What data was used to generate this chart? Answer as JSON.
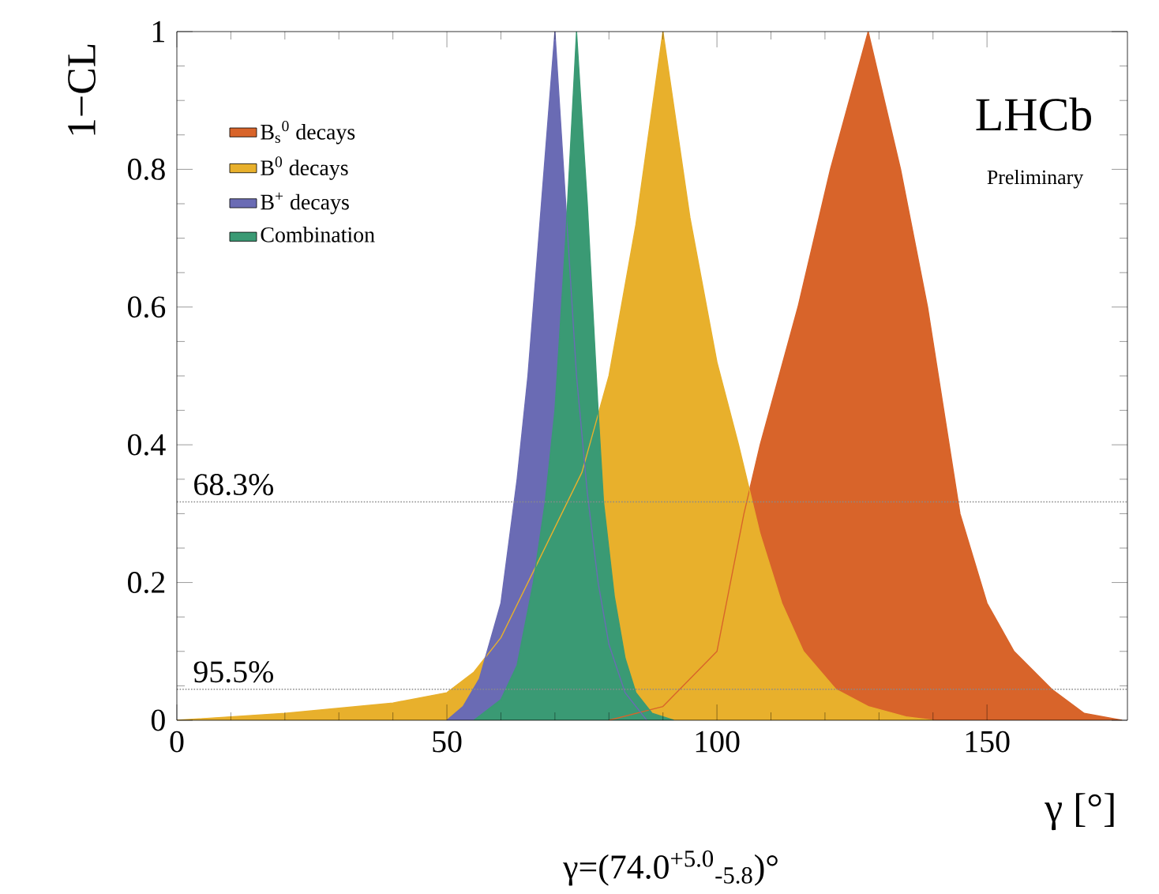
{
  "chart_data": {
    "type": "area",
    "xlabel": "γ [°]",
    "ylabel": "1−CL",
    "xlim": [
      0,
      176
    ],
    "ylim": [
      0,
      1
    ],
    "xticks": [
      0,
      50,
      100,
      150
    ],
    "yticks": [
      0,
      0.2,
      0.4,
      0.6,
      0.8,
      1
    ],
    "legend": "top left",
    "grid": false,
    "series": [
      {
        "name": "B$_{s}$$^{0}$ decays",
        "color": "#d8642a",
        "x": [
          80,
          90,
          100,
          105,
          108,
          115,
          121,
          128,
          134,
          139,
          143,
          145,
          150,
          155,
          162,
          168,
          175
        ],
        "values": [
          0,
          0.02,
          0.1,
          0.3,
          0.4,
          0.6,
          0.8,
          1,
          0.8,
          0.6,
          0.4,
          0.3,
          0.17,
          0.1,
          0.045,
          0.01,
          0
        ]
      },
      {
        "name": "B$^{0}$ decays",
        "color": "#e8b02c",
        "x": [
          0,
          20,
          40,
          50,
          55,
          60,
          65,
          70,
          75,
          80,
          85,
          90,
          95,
          100,
          104,
          108,
          112,
          116,
          122,
          128,
          135,
          140
        ],
        "values": [
          0,
          0.01,
          0.025,
          0.04,
          0.07,
          0.12,
          0.2,
          0.28,
          0.36,
          0.5,
          0.72,
          1,
          0.73,
          0.52,
          0.4,
          0.27,
          0.17,
          0.1,
          0.045,
          0.02,
          0.005,
          0
        ]
      },
      {
        "name": "B$^{+}$ decays",
        "color": "#6a6bb4",
        "x": [
          50,
          53,
          56,
          60,
          63,
          65,
          67.5,
          70,
          72,
          74,
          76,
          78,
          80,
          83,
          87
        ],
        "values": [
          0,
          0.02,
          0.06,
          0.17,
          0.35,
          0.5,
          0.75,
          1,
          0.75,
          0.5,
          0.33,
          0.2,
          0.11,
          0.04,
          0
        ]
      },
      {
        "name": "Combination",
        "color": "#3a9a74",
        "x": [
          55,
          60,
          63,
          66,
          68.2,
          70,
          72,
          74,
          76,
          78,
          79,
          81,
          83,
          85,
          88,
          92
        ],
        "values": [
          0,
          0.03,
          0.08,
          0.2,
          0.317,
          0.45,
          0.7,
          1,
          0.75,
          0.45,
          0.317,
          0.18,
          0.09,
          0.04,
          0.01,
          0
        ]
      }
    ],
    "ref_lines": [
      {
        "axis": "y",
        "value": 0.317,
        "color": "#8a8a8a",
        "line_style": "dotted"
      },
      {
        "axis": "y",
        "value": 0.045,
        "color": "#8a8a8a",
        "line_style": "dotted"
      }
    ],
    "annotations": [
      "LHCb",
      "Preliminary",
      "γ=(74.0$^{+5.0}$$_{-5.8}$)°",
      {
        "text": "68.3%",
        "y": 0.317
      },
      {
        "text": "95.5%",
        "y": 0.045
      }
    ]
  }
}
